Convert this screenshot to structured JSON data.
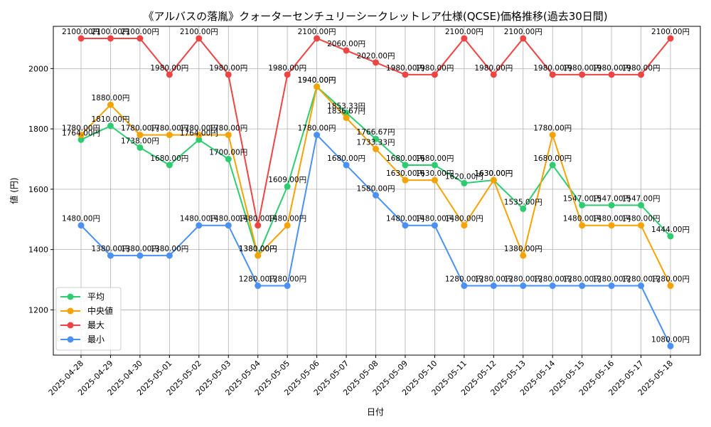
{
  "chart_data": {
    "type": "line",
    "title": "《アルバスの落胤》クォーターセンチュリーシークレットレア仕様(QCSE)価格推移(過去30日間)",
    "xlabel": "日付",
    "ylabel": "値 (円)",
    "ylim": [
      1050,
      2140
    ],
    "yticks": [
      1200,
      1400,
      1600,
      1800,
      2000
    ],
    "grid": true,
    "legend_position": "lower-left",
    "label_suffix": "円",
    "categories": [
      "2025-04-28",
      "2025-04-29",
      "2025-04-30",
      "2025-05-01",
      "2025-05-02",
      "2025-05-03",
      "2025-05-04",
      "2025-05-05",
      "2025-05-06",
      "2025-05-07",
      "2025-05-08",
      "2025-05-09",
      "2025-05-10",
      "2025-05-11",
      "2025-05-12",
      "2025-05-13",
      "2025-05-14",
      "2025-05-15",
      "2025-05-16",
      "2025-05-17",
      "2025-05-18"
    ],
    "series": [
      {
        "name": "平均",
        "color": "#2ecc71",
        "values": [
          1764.0,
          1810.0,
          1738.0,
          1680.0,
          1764.0,
          1700.0,
          1380.0,
          1609.0,
          1940.0,
          1853.33,
          1766.67,
          1680.0,
          1680.0,
          1620.0,
          1630.0,
          1535.0,
          1680.0,
          1547.0,
          1547.0,
          1547.0,
          1444.0
        ]
      },
      {
        "name": "中央値",
        "color": "#f5a300",
        "values": [
          1780.0,
          1880.0,
          1780.0,
          1780.0,
          1780.0,
          1780.0,
          1380.0,
          1480.0,
          1940.0,
          1836.67,
          1733.33,
          1630.0,
          1630.0,
          1480.0,
          1630.0,
          1380.0,
          1780.0,
          1480.0,
          1480.0,
          1480.0,
          1280.0
        ]
      },
      {
        "name": "最大",
        "color": "#ef4444",
        "values": [
          2100.0,
          2100.0,
          2100.0,
          1980.0,
          2100.0,
          1980.0,
          1480.0,
          1980.0,
          2100.0,
          2060.0,
          2020.0,
          1980.0,
          1980.0,
          2100.0,
          1980.0,
          2100.0,
          1980.0,
          1980.0,
          1980.0,
          1980.0,
          2100.0
        ]
      },
      {
        "name": "最小",
        "color": "#4a90f5",
        "values": [
          1480.0,
          1380.0,
          1380.0,
          1380.0,
          1480.0,
          1480.0,
          1280.0,
          1280.0,
          1780.0,
          1680.0,
          1580.0,
          1480.0,
          1480.0,
          1280.0,
          1280.0,
          1280.0,
          1280.0,
          1280.0,
          1280.0,
          1280.0,
          1080.0
        ]
      }
    ]
  }
}
